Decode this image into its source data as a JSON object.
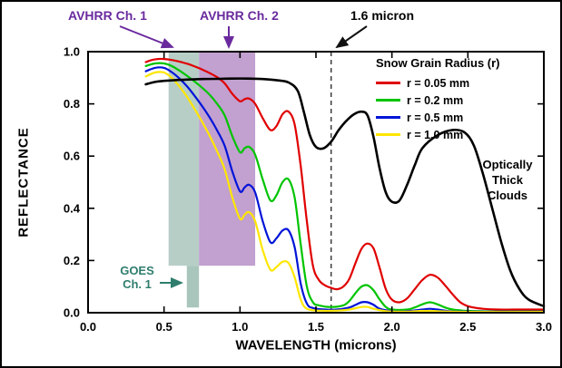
{
  "figure": {
    "background": "#ffffff",
    "border_color": "#000000"
  },
  "chart_data": {
    "type": "line",
    "title": "",
    "xlabel": "WAVELENGTH (microns)",
    "ylabel": "REFLECTANCE",
    "xlim": [
      0.0,
      3.0
    ],
    "ylim": [
      0.0,
      1.0
    ],
    "xticks": [
      0.0,
      0.5,
      1.0,
      1.5,
      2.0,
      2.5,
      3.0
    ],
    "yticks": [
      0.0,
      0.2,
      0.4,
      0.6,
      0.8,
      1.0
    ],
    "grid": false,
    "legend": {
      "title": "Snow Grain Radius (r)",
      "position": "upper-right"
    },
    "vline": {
      "x": 1.6,
      "label": "1.6 micron",
      "style": "dashed",
      "color": "#333333"
    },
    "bands": [
      {
        "id": "goes-ch1-wide",
        "label": "GOES Ch. 1 / AVHRR Ch. 1 band",
        "x0": 0.53,
        "x1": 0.73,
        "y0": 0.18,
        "y1": 1.0,
        "color": "#b7cec7"
      },
      {
        "id": "goes-ch1-narrow",
        "label": "GOES Ch. 1 band extension",
        "x0": 0.65,
        "x1": 0.73,
        "y0": 0.02,
        "y1": 0.18,
        "color": "#a9c6bd"
      },
      {
        "id": "avhrr-ch2",
        "label": "AVHRR Ch. 2 band",
        "x0": 0.73,
        "x1": 1.1,
        "y0": 0.18,
        "y1": 1.0,
        "color": "#c2a0d0"
      }
    ],
    "series": [
      {
        "name": "r = 0.05 mm",
        "color": "#e00000",
        "width": 2.2,
        "in_legend": true,
        "points": [
          [
            0.38,
            0.96
          ],
          [
            0.42,
            0.968
          ],
          [
            0.46,
            0.972
          ],
          [
            0.5,
            0.972
          ],
          [
            0.55,
            0.968
          ],
          [
            0.6,
            0.962
          ],
          [
            0.65,
            0.954
          ],
          [
            0.7,
            0.944
          ],
          [
            0.75,
            0.932
          ],
          [
            0.8,
            0.918
          ],
          [
            0.85,
            0.902
          ],
          [
            0.9,
            0.878
          ],
          [
            0.95,
            0.838
          ],
          [
            1.0,
            0.81
          ],
          [
            1.03,
            0.818
          ],
          [
            1.06,
            0.82
          ],
          [
            1.1,
            0.8
          ],
          [
            1.15,
            0.745
          ],
          [
            1.2,
            0.7
          ],
          [
            1.24,
            0.715
          ],
          [
            1.28,
            0.76
          ],
          [
            1.32,
            0.77
          ],
          [
            1.36,
            0.72
          ],
          [
            1.4,
            0.56
          ],
          [
            1.44,
            0.35
          ],
          [
            1.48,
            0.18
          ],
          [
            1.52,
            0.125
          ],
          [
            1.56,
            0.105
          ],
          [
            1.6,
            0.095
          ],
          [
            1.64,
            0.09
          ],
          [
            1.68,
            0.1
          ],
          [
            1.72,
            0.13
          ],
          [
            1.76,
            0.19
          ],
          [
            1.8,
            0.245
          ],
          [
            1.84,
            0.265
          ],
          [
            1.88,
            0.245
          ],
          [
            1.92,
            0.17
          ],
          [
            1.96,
            0.09
          ],
          [
            2.0,
            0.05
          ],
          [
            2.05,
            0.04
          ],
          [
            2.1,
            0.055
          ],
          [
            2.15,
            0.09
          ],
          [
            2.2,
            0.125
          ],
          [
            2.25,
            0.145
          ],
          [
            2.3,
            0.135
          ],
          [
            2.35,
            0.105
          ],
          [
            2.4,
            0.07
          ],
          [
            2.45,
            0.04
          ],
          [
            2.5,
            0.025
          ],
          [
            2.6,
            0.015
          ],
          [
            2.7,
            0.012
          ],
          [
            2.8,
            0.012
          ],
          [
            2.9,
            0.012
          ],
          [
            3.0,
            0.012
          ]
        ]
      },
      {
        "name": "r = 0.2 mm",
        "color": "#00c400",
        "width": 2.2,
        "in_legend": true,
        "points": [
          [
            0.38,
            0.945
          ],
          [
            0.44,
            0.955
          ],
          [
            0.5,
            0.955
          ],
          [
            0.55,
            0.945
          ],
          [
            0.6,
            0.928
          ],
          [
            0.65,
            0.908
          ],
          [
            0.7,
            0.886
          ],
          [
            0.75,
            0.862
          ],
          [
            0.8,
            0.835
          ],
          [
            0.85,
            0.8
          ],
          [
            0.9,
            0.755
          ],
          [
            0.95,
            0.675
          ],
          [
            1.0,
            0.615
          ],
          [
            1.03,
            0.63
          ],
          [
            1.06,
            0.635
          ],
          [
            1.1,
            0.605
          ],
          [
            1.15,
            0.51
          ],
          [
            1.2,
            0.43
          ],
          [
            1.24,
            0.45
          ],
          [
            1.28,
            0.5
          ],
          [
            1.32,
            0.51
          ],
          [
            1.36,
            0.44
          ],
          [
            1.4,
            0.26
          ],
          [
            1.44,
            0.1
          ],
          [
            1.48,
            0.04
          ],
          [
            1.52,
            0.028
          ],
          [
            1.6,
            0.022
          ],
          [
            1.68,
            0.028
          ],
          [
            1.72,
            0.045
          ],
          [
            1.76,
            0.075
          ],
          [
            1.8,
            0.1
          ],
          [
            1.84,
            0.105
          ],
          [
            1.88,
            0.085
          ],
          [
            1.92,
            0.05
          ],
          [
            1.96,
            0.022
          ],
          [
            2.0,
            0.012
          ],
          [
            2.1,
            0.012
          ],
          [
            2.15,
            0.02
          ],
          [
            2.2,
            0.032
          ],
          [
            2.25,
            0.04
          ],
          [
            2.3,
            0.032
          ],
          [
            2.35,
            0.02
          ],
          [
            2.4,
            0.012
          ],
          [
            2.5,
            0.007
          ],
          [
            2.7,
            0.005
          ],
          [
            3.0,
            0.005
          ]
        ]
      },
      {
        "name": "r = 0.5 mm",
        "color": "#0014d8",
        "width": 2.2,
        "in_legend": true,
        "points": [
          [
            0.38,
            0.925
          ],
          [
            0.44,
            0.938
          ],
          [
            0.5,
            0.938
          ],
          [
            0.55,
            0.922
          ],
          [
            0.6,
            0.898
          ],
          [
            0.65,
            0.868
          ],
          [
            0.7,
            0.832
          ],
          [
            0.75,
            0.792
          ],
          [
            0.8,
            0.748
          ],
          [
            0.85,
            0.698
          ],
          [
            0.9,
            0.638
          ],
          [
            0.95,
            0.54
          ],
          [
            1.0,
            0.465
          ],
          [
            1.03,
            0.48
          ],
          [
            1.06,
            0.49
          ],
          [
            1.1,
            0.46
          ],
          [
            1.15,
            0.35
          ],
          [
            1.2,
            0.27
          ],
          [
            1.24,
            0.285
          ],
          [
            1.28,
            0.315
          ],
          [
            1.32,
            0.315
          ],
          [
            1.36,
            0.25
          ],
          [
            1.4,
            0.11
          ],
          [
            1.44,
            0.035
          ],
          [
            1.48,
            0.018
          ],
          [
            1.56,
            0.012
          ],
          [
            1.64,
            0.012
          ],
          [
            1.72,
            0.02
          ],
          [
            1.76,
            0.03
          ],
          [
            1.8,
            0.04
          ],
          [
            1.84,
            0.04
          ],
          [
            1.88,
            0.03
          ],
          [
            1.92,
            0.015
          ],
          [
            2.0,
            0.006
          ],
          [
            2.1,
            0.006
          ],
          [
            2.2,
            0.012
          ],
          [
            2.25,
            0.015
          ],
          [
            2.3,
            0.012
          ],
          [
            2.4,
            0.005
          ],
          [
            2.6,
            0.004
          ],
          [
            3.0,
            0.004
          ]
        ]
      },
      {
        "name": "r = 1.0 mm",
        "color": "#ffe600",
        "width": 2.2,
        "in_legend": true,
        "points": [
          [
            0.38,
            0.905
          ],
          [
            0.44,
            0.92
          ],
          [
            0.5,
            0.92
          ],
          [
            0.55,
            0.9
          ],
          [
            0.6,
            0.868
          ],
          [
            0.65,
            0.828
          ],
          [
            0.7,
            0.782
          ],
          [
            0.75,
            0.732
          ],
          [
            0.8,
            0.678
          ],
          [
            0.85,
            0.618
          ],
          [
            0.9,
            0.548
          ],
          [
            0.95,
            0.44
          ],
          [
            1.0,
            0.36
          ],
          [
            1.03,
            0.375
          ],
          [
            1.06,
            0.385
          ],
          [
            1.1,
            0.35
          ],
          [
            1.15,
            0.24
          ],
          [
            1.2,
            0.165
          ],
          [
            1.24,
            0.175
          ],
          [
            1.28,
            0.195
          ],
          [
            1.32,
            0.19
          ],
          [
            1.36,
            0.135
          ],
          [
            1.4,
            0.05
          ],
          [
            1.44,
            0.015
          ],
          [
            1.52,
            0.008
          ],
          [
            1.64,
            0.008
          ],
          [
            1.72,
            0.012
          ],
          [
            1.8,
            0.022
          ],
          [
            1.84,
            0.022
          ],
          [
            1.88,
            0.015
          ],
          [
            1.96,
            0.006
          ],
          [
            2.1,
            0.004
          ],
          [
            2.2,
            0.007
          ],
          [
            2.3,
            0.006
          ],
          [
            2.5,
            0.003
          ],
          [
            3.0,
            0.003
          ]
        ]
      },
      {
        "name": "Optically Thick Clouds",
        "color": "#000000",
        "width": 2.6,
        "in_legend": false,
        "points": [
          [
            0.38,
            0.875
          ],
          [
            0.45,
            0.885
          ],
          [
            0.55,
            0.89
          ],
          [
            0.65,
            0.893
          ],
          [
            0.75,
            0.895
          ],
          [
            0.85,
            0.896
          ],
          [
            0.95,
            0.897
          ],
          [
            1.05,
            0.897
          ],
          [
            1.15,
            0.895
          ],
          [
            1.25,
            0.89
          ],
          [
            1.32,
            0.882
          ],
          [
            1.38,
            0.85
          ],
          [
            1.42,
            0.77
          ],
          [
            1.46,
            0.68
          ],
          [
            1.5,
            0.635
          ],
          [
            1.55,
            0.63
          ],
          [
            1.6,
            0.655
          ],
          [
            1.65,
            0.7
          ],
          [
            1.7,
            0.735
          ],
          [
            1.75,
            0.76
          ],
          [
            1.8,
            0.77
          ],
          [
            1.84,
            0.755
          ],
          [
            1.88,
            0.67
          ],
          [
            1.92,
            0.55
          ],
          [
            1.96,
            0.46
          ],
          [
            2.0,
            0.425
          ],
          [
            2.05,
            0.43
          ],
          [
            2.1,
            0.49
          ],
          [
            2.15,
            0.565
          ],
          [
            2.2,
            0.63
          ],
          [
            2.3,
            0.68
          ],
          [
            2.4,
            0.7
          ],
          [
            2.48,
            0.69
          ],
          [
            2.54,
            0.64
          ],
          [
            2.6,
            0.53
          ],
          [
            2.66,
            0.4
          ],
          [
            2.72,
            0.27
          ],
          [
            2.78,
            0.16
          ],
          [
            2.84,
            0.09
          ],
          [
            2.9,
            0.05
          ],
          [
            3.0,
            0.025
          ]
        ]
      }
    ]
  },
  "annotations": {
    "avhrr_ch1": {
      "text": "AVHRR Ch. 1",
      "color": "#6a2a9e"
    },
    "avhrr_ch2": {
      "text": "AVHRR Ch. 2",
      "color": "#6a2a9e"
    },
    "micron_16": {
      "text": "1.6 micron",
      "color": "#000000"
    },
    "goes_ch1": {
      "line1": "GOES",
      "line2": "Ch. 1",
      "color": "#2f7d6d"
    },
    "clouds": {
      "line1": "Optically",
      "line2": "Thick",
      "line3": "Clouds",
      "color": "#000000"
    }
  }
}
